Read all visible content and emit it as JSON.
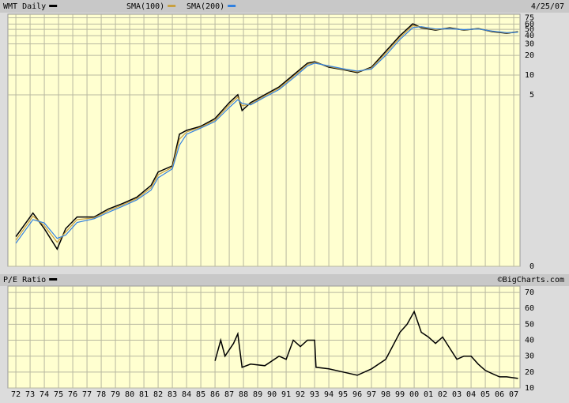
{
  "chart_data": [
    {
      "type": "line",
      "date": "4/25/07",
      "log_scale": true,
      "grid": true,
      "xlim": [
        1971.44,
        2007.44
      ],
      "ylim": [
        0.012,
        85
      ],
      "yticks": [
        {
          "value": 0.012,
          "label": "0"
        },
        5,
        10,
        20,
        30,
        40,
        50,
        60,
        75
      ],
      "x": [
        1972.0,
        1973.2,
        1974.0,
        1974.9,
        1975.5,
        1976.3,
        1977.5,
        1978.5,
        1979.5,
        1980.5,
        1981.5,
        1982.0,
        1983.0,
        1983.5,
        1984.0,
        1985.0,
        1986.0,
        1987.0,
        1987.6,
        1987.9,
        1988.5,
        1989.5,
        1990.5,
        1991.5,
        1992.5,
        1993.0,
        1994.0,
        1995.0,
        1996.0,
        1997.0,
        1998.0,
        1999.0,
        1999.9,
        2000.5,
        2001.5,
        2002.5,
        2003.5,
        2004.5,
        2005.5,
        2006.5,
        2007.3
      ],
      "series": [
        {
          "name": "WMT Daily",
          "color": "#000000",
          "values": [
            0.034,
            0.078,
            0.045,
            0.022,
            0.045,
            0.068,
            0.068,
            0.09,
            0.109,
            0.136,
            0.206,
            0.33,
            0.41,
            1.25,
            1.43,
            1.65,
            2.17,
            3.79,
            5.0,
            2.87,
            3.79,
            5.0,
            6.6,
            10.0,
            15.2,
            16.0,
            13.2,
            12.1,
            10.9,
            13.2,
            23.0,
            40.0,
            60.6,
            52.8,
            48.6,
            52.8,
            48.6,
            51.4,
            46.0,
            43.5,
            46.0
          ]
        },
        {
          "name": "SMA(100)",
          "color": "#c8a040",
          "values": [
            0.03,
            0.07,
            0.05,
            0.028,
            0.04,
            0.062,
            0.066,
            0.085,
            0.104,
            0.13,
            0.19,
            0.3,
            0.39,
            1.05,
            1.35,
            1.6,
            2.05,
            3.5,
            4.6,
            3.4,
            3.6,
            4.8,
            6.3,
            9.5,
            14.5,
            15.6,
            13.5,
            12.3,
            11.2,
            12.8,
            21.5,
            37.5,
            57.0,
            54.0,
            49.5,
            52.0,
            49.0,
            51.0,
            46.5,
            44.0,
            45.5
          ]
        },
        {
          "name": "SMA(200)",
          "color": "#3080e0",
          "values": [
            0.027,
            0.062,
            0.055,
            0.032,
            0.036,
            0.056,
            0.064,
            0.08,
            0.099,
            0.124,
            0.175,
            0.27,
            0.37,
            0.85,
            1.25,
            1.55,
            1.95,
            3.2,
            4.2,
            3.7,
            3.5,
            4.6,
            6.0,
            9.0,
            13.8,
            15.2,
            13.8,
            12.5,
            11.5,
            12.4,
            20.0,
            35.0,
            53.0,
            55.0,
            50.5,
            51.0,
            49.5,
            50.5,
            47.0,
            44.5,
            45.0
          ]
        }
      ]
    },
    {
      "type": "line",
      "credit": "©BigCharts.com",
      "grid": true,
      "xlim": [
        1971.44,
        2007.44
      ],
      "ylim": [
        10,
        74
      ],
      "yticks": [
        10,
        20,
        30,
        40,
        50,
        60,
        70
      ],
      "xticks": [
        {
          "value": 1972,
          "label": "72"
        },
        {
          "value": 1973,
          "label": "73"
        },
        {
          "value": 1974,
          "label": "74"
        },
        {
          "value": 1975,
          "label": "75"
        },
        {
          "value": 1976,
          "label": "76"
        },
        {
          "value": 1977,
          "label": "77"
        },
        {
          "value": 1978,
          "label": "78"
        },
        {
          "value": 1979,
          "label": "79"
        },
        {
          "value": 1980,
          "label": "80"
        },
        {
          "value": 1981,
          "label": "81"
        },
        {
          "value": 1982,
          "label": "82"
        },
        {
          "value": 1983,
          "label": "83"
        },
        {
          "value": 1984,
          "label": "84"
        },
        {
          "value": 1985,
          "label": "85"
        },
        {
          "value": 1986,
          "label": "86"
        },
        {
          "value": 1987,
          "label": "87"
        },
        {
          "value": 1988,
          "label": "88"
        },
        {
          "value": 1989,
          "label": "89"
        },
        {
          "value": 1990,
          "label": "90"
        },
        {
          "value": 1991,
          "label": "91"
        },
        {
          "value": 1992,
          "label": "92"
        },
        {
          "value": 1993,
          "label": "93"
        },
        {
          "value": 1994,
          "label": "94"
        },
        {
          "value": 1995,
          "label": "95"
        },
        {
          "value": 1996,
          "label": "96"
        },
        {
          "value": 1997,
          "label": "97"
        },
        {
          "value": 1998,
          "label": "98"
        },
        {
          "value": 1999,
          "label": "99"
        },
        {
          "value": 2000,
          "label": "00"
        },
        {
          "value": 2001,
          "label": "01"
        },
        {
          "value": 2002,
          "label": "02"
        },
        {
          "value": 2003,
          "label": "03"
        },
        {
          "value": 2004,
          "label": "04"
        },
        {
          "value": 2005,
          "label": "05"
        },
        {
          "value": 2006,
          "label": "06"
        },
        {
          "value": 2007,
          "label": "07"
        }
      ],
      "x": [
        1986.0,
        1986.4,
        1986.7,
        1987.3,
        1987.6,
        1987.9,
        1988.5,
        1989.5,
        1990.5,
        1991.0,
        1991.5,
        1992.0,
        1992.5,
        1993.0,
        1993.1,
        1994.0,
        1995.0,
        1996.0,
        1997.0,
        1998.0,
        1999.0,
        1999.5,
        2000.0,
        2000.5,
        2001.0,
        2001.5,
        2002.0,
        2002.5,
        2003.0,
        2003.5,
        2004.0,
        2004.5,
        2005.0,
        2005.5,
        2006.0,
        2006.5,
        2007.3
      ],
      "series": [
        {
          "name": "P/E Ratio",
          "color": "#000000",
          "values": [
            27,
            40,
            30,
            38,
            44,
            23,
            25,
            24,
            30,
            28,
            40,
            36,
            40,
            40,
            23,
            22,
            20,
            18,
            22,
            28,
            45,
            50,
            58,
            45,
            42,
            38,
            42,
            35,
            28,
            30,
            30,
            25,
            21,
            19,
            17,
            17,
            16
          ]
        }
      ]
    }
  ]
}
